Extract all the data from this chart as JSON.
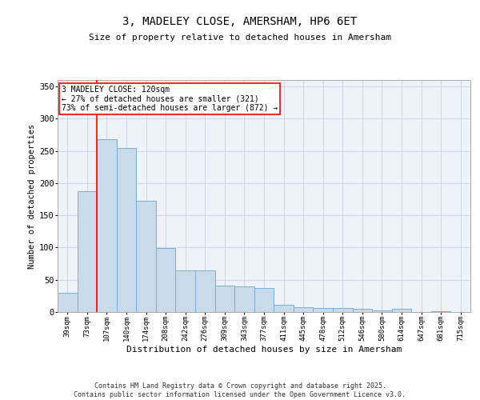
{
  "title_line1": "3, MADELEY CLOSE, AMERSHAM, HP6 6ET",
  "title_line2": "Size of property relative to detached houses in Amersham",
  "xlabel": "Distribution of detached houses by size in Amersham",
  "ylabel": "Number of detached properties",
  "categories": [
    "39sqm",
    "73sqm",
    "107sqm",
    "140sqm",
    "174sqm",
    "208sqm",
    "242sqm",
    "276sqm",
    "309sqm",
    "343sqm",
    "377sqm",
    "411sqm",
    "445sqm",
    "478sqm",
    "512sqm",
    "546sqm",
    "580sqm",
    "614sqm",
    "647sqm",
    "681sqm",
    "715sqm"
  ],
  "values": [
    30,
    188,
    268,
    255,
    173,
    99,
    65,
    65,
    41,
    40,
    37,
    11,
    8,
    6,
    6,
    5,
    3,
    5,
    0,
    1,
    0
  ],
  "bar_color": "#c9daea",
  "bar_edge_color": "#7aaed6",
  "grid_color": "#d0d8e8",
  "background_color": "#eef2f9",
  "vline_color": "red",
  "annotation_text": "3 MADELEY CLOSE: 120sqm\n← 27% of detached houses are smaller (321)\n73% of semi-detached houses are larger (872) →",
  "ylim": [
    0,
    360
  ],
  "yticks": [
    0,
    50,
    100,
    150,
    200,
    250,
    300,
    350
  ],
  "footer_text": "Contains HM Land Registry data © Crown copyright and database right 2025.\nContains public sector information licensed under the Open Government Licence v3.0."
}
